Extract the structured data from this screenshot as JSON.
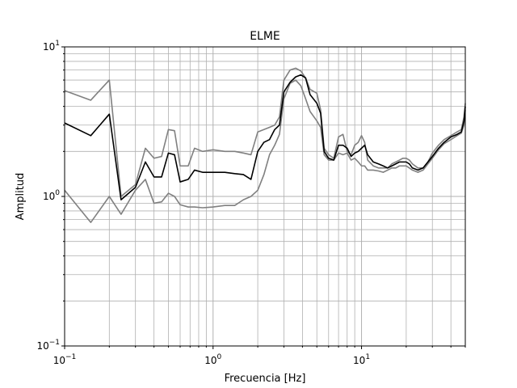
{
  "chart_data": {
    "type": "line",
    "title": "ELME",
    "xlabel": "Frecuencia [Hz]",
    "ylabel": "Amplitud",
    "xscale": "log",
    "yscale": "log",
    "xlim": [
      0.1,
      50
    ],
    "ylim": [
      0.1,
      10
    ],
    "grid": true,
    "legend": "none",
    "xticks": [
      {
        "value": 0.1,
        "base": "10",
        "exp": "−1"
      },
      {
        "value": 1,
        "base": "10",
        "exp": "0"
      },
      {
        "value": 10,
        "base": "10",
        "exp": "1"
      }
    ],
    "yticks": [
      {
        "value": 0.1,
        "base": "10",
        "exp": "−1"
      },
      {
        "value": 1,
        "base": "10",
        "exp": "0"
      },
      {
        "value": 10,
        "base": "10",
        "exp": "1"
      }
    ],
    "colors": {
      "mean": "#000000",
      "bounds": "#808080",
      "grid": "#b0b0b0"
    },
    "series": [
      {
        "role": "mean",
        "points": [
          [
            0.1,
            3.1
          ],
          [
            0.15,
            2.55
          ],
          [
            0.2,
            3.55
          ],
          [
            0.24,
            0.95
          ],
          [
            0.3,
            1.15
          ],
          [
            0.35,
            1.7
          ],
          [
            0.4,
            1.35
          ],
          [
            0.45,
            1.35
          ],
          [
            0.5,
            1.95
          ],
          [
            0.55,
            1.9
          ],
          [
            0.6,
            1.25
          ],
          [
            0.68,
            1.3
          ],
          [
            0.75,
            1.5
          ],
          [
            0.85,
            1.45
          ],
          [
            1.0,
            1.45
          ],
          [
            1.2,
            1.45
          ],
          [
            1.4,
            1.42
          ],
          [
            1.6,
            1.4
          ],
          [
            1.8,
            1.3
          ],
          [
            2.0,
            2.0
          ],
          [
            2.2,
            2.3
          ],
          [
            2.4,
            2.4
          ],
          [
            2.6,
            2.8
          ],
          [
            2.8,
            3.0
          ],
          [
            3.0,
            5.0
          ],
          [
            3.3,
            5.8
          ],
          [
            3.6,
            6.3
          ],
          [
            3.9,
            6.5
          ],
          [
            4.2,
            6.2
          ],
          [
            4.5,
            4.8
          ],
          [
            5.0,
            4.2
          ],
          [
            5.3,
            3.6
          ],
          [
            5.6,
            2.0
          ],
          [
            6.0,
            1.8
          ],
          [
            6.5,
            1.75
          ],
          [
            7.0,
            2.2
          ],
          [
            7.5,
            2.2
          ],
          [
            8.0,
            2.1
          ],
          [
            8.5,
            1.85
          ],
          [
            9.0,
            1.95
          ],
          [
            9.5,
            2.0
          ],
          [
            10.0,
            2.1
          ],
          [
            10.5,
            2.2
          ],
          [
            11.0,
            1.9
          ],
          [
            12.0,
            1.7
          ],
          [
            13.0,
            1.65
          ],
          [
            14.0,
            1.6
          ],
          [
            15.0,
            1.55
          ],
          [
            16.0,
            1.6
          ],
          [
            17.0,
            1.65
          ],
          [
            18.0,
            1.7
          ],
          [
            19.0,
            1.7
          ],
          [
            20.0,
            1.7
          ],
          [
            21.0,
            1.65
          ],
          [
            22.0,
            1.55
          ],
          [
            24.0,
            1.5
          ],
          [
            26.0,
            1.55
          ],
          [
            28.0,
            1.7
          ],
          [
            30.0,
            1.85
          ],
          [
            33.0,
            2.1
          ],
          [
            36.0,
            2.3
          ],
          [
            40.0,
            2.5
          ],
          [
            44.0,
            2.6
          ],
          [
            47.0,
            2.7
          ],
          [
            49.0,
            3.2
          ],
          [
            50.0,
            4.0
          ]
        ]
      },
      {
        "role": "upper",
        "points": [
          [
            0.1,
            5.1
          ],
          [
            0.15,
            4.4
          ],
          [
            0.2,
            6.0
          ],
          [
            0.24,
            1.0
          ],
          [
            0.3,
            1.2
          ],
          [
            0.35,
            2.1
          ],
          [
            0.4,
            1.8
          ],
          [
            0.45,
            1.85
          ],
          [
            0.5,
            2.8
          ],
          [
            0.55,
            2.75
          ],
          [
            0.6,
            1.6
          ],
          [
            0.68,
            1.6
          ],
          [
            0.75,
            2.1
          ],
          [
            0.85,
            2.0
          ],
          [
            1.0,
            2.05
          ],
          [
            1.2,
            2.0
          ],
          [
            1.4,
            2.0
          ],
          [
            1.6,
            1.95
          ],
          [
            1.8,
            1.9
          ],
          [
            2.0,
            2.7
          ],
          [
            2.2,
            2.8
          ],
          [
            2.4,
            2.9
          ],
          [
            2.6,
            3.0
          ],
          [
            2.8,
            3.4
          ],
          [
            3.0,
            6.0
          ],
          [
            3.3,
            7.0
          ],
          [
            3.6,
            7.2
          ],
          [
            3.9,
            6.9
          ],
          [
            4.2,
            6.2
          ],
          [
            4.5,
            5.2
          ],
          [
            5.0,
            4.9
          ],
          [
            5.3,
            3.8
          ],
          [
            5.6,
            2.1
          ],
          [
            6.0,
            1.9
          ],
          [
            6.5,
            1.8
          ],
          [
            7.0,
            2.5
          ],
          [
            7.5,
            2.6
          ],
          [
            8.0,
            2.0
          ],
          [
            8.5,
            1.9
          ],
          [
            9.0,
            2.2
          ],
          [
            9.5,
            2.3
          ],
          [
            10.0,
            2.55
          ],
          [
            10.5,
            2.3
          ],
          [
            11.0,
            1.75
          ],
          [
            12.0,
            1.6
          ],
          [
            13.0,
            1.55
          ],
          [
            14.0,
            1.55
          ],
          [
            15.0,
            1.55
          ],
          [
            16.0,
            1.65
          ],
          [
            17.0,
            1.7
          ],
          [
            18.0,
            1.75
          ],
          [
            19.0,
            1.8
          ],
          [
            20.0,
            1.8
          ],
          [
            21.0,
            1.75
          ],
          [
            22.0,
            1.65
          ],
          [
            24.0,
            1.55
          ],
          [
            26.0,
            1.55
          ],
          [
            28.0,
            1.7
          ],
          [
            30.0,
            1.95
          ],
          [
            33.0,
            2.2
          ],
          [
            36.0,
            2.4
          ],
          [
            40.0,
            2.55
          ],
          [
            44.0,
            2.7
          ],
          [
            47.0,
            2.8
          ],
          [
            49.0,
            3.4
          ],
          [
            50.0,
            4.2
          ]
        ]
      },
      {
        "role": "lower",
        "points": [
          [
            0.1,
            1.1
          ],
          [
            0.15,
            0.67
          ],
          [
            0.2,
            1.0
          ],
          [
            0.24,
            0.76
          ],
          [
            0.3,
            1.1
          ],
          [
            0.35,
            1.3
          ],
          [
            0.4,
            0.9
          ],
          [
            0.45,
            0.92
          ],
          [
            0.5,
            1.05
          ],
          [
            0.55,
            1.0
          ],
          [
            0.6,
            0.88
          ],
          [
            0.68,
            0.85
          ],
          [
            0.75,
            0.85
          ],
          [
            0.85,
            0.84
          ],
          [
            1.0,
            0.85
          ],
          [
            1.2,
            0.87
          ],
          [
            1.4,
            0.87
          ],
          [
            1.6,
            0.95
          ],
          [
            1.8,
            1.0
          ],
          [
            2.0,
            1.1
          ],
          [
            2.2,
            1.4
          ],
          [
            2.4,
            1.9
          ],
          [
            2.6,
            2.2
          ],
          [
            2.8,
            2.6
          ],
          [
            3.0,
            4.5
          ],
          [
            3.3,
            5.7
          ],
          [
            3.6,
            6.0
          ],
          [
            3.9,
            5.5
          ],
          [
            4.2,
            4.5
          ],
          [
            4.5,
            3.7
          ],
          [
            5.0,
            3.2
          ],
          [
            5.3,
            2.9
          ],
          [
            5.6,
            1.9
          ],
          [
            6.0,
            1.75
          ],
          [
            6.5,
            1.75
          ],
          [
            7.0,
            1.95
          ],
          [
            7.5,
            1.9
          ],
          [
            8.0,
            1.95
          ],
          [
            8.5,
            1.75
          ],
          [
            9.0,
            1.8
          ],
          [
            9.5,
            1.7
          ],
          [
            10.0,
            1.6
          ],
          [
            10.5,
            1.6
          ],
          [
            11.0,
            1.5
          ],
          [
            12.0,
            1.5
          ],
          [
            13.0,
            1.48
          ],
          [
            14.0,
            1.45
          ],
          [
            15.0,
            1.5
          ],
          [
            16.0,
            1.55
          ],
          [
            17.0,
            1.55
          ],
          [
            18.0,
            1.6
          ],
          [
            19.0,
            1.6
          ],
          [
            20.0,
            1.6
          ],
          [
            21.0,
            1.55
          ],
          [
            22.0,
            1.5
          ],
          [
            24.0,
            1.45
          ],
          [
            26.0,
            1.5
          ],
          [
            28.0,
            1.65
          ],
          [
            30.0,
            1.8
          ],
          [
            33.0,
            2.05
          ],
          [
            36.0,
            2.25
          ],
          [
            40.0,
            2.4
          ],
          [
            44.0,
            2.55
          ],
          [
            47.0,
            2.65
          ],
          [
            49.0,
            3.0
          ],
          [
            50.0,
            3.8
          ]
        ]
      }
    ]
  }
}
